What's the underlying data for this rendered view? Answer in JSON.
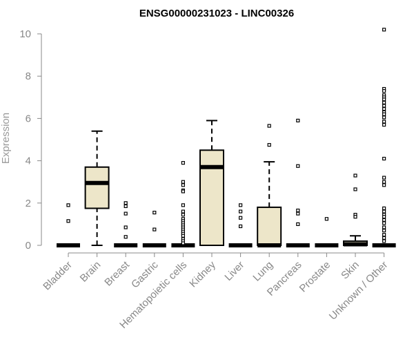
{
  "chart_data": {
    "type": "boxplot",
    "title": "ENSG00000231023 - LINC00326",
    "ylabel": "Expression",
    "xlabel": "",
    "ylim": [
      0,
      10
    ],
    "yticks": [
      0,
      2,
      4,
      6,
      8,
      10
    ],
    "grid": false,
    "legend": "none",
    "box_fill": "#ede6c9",
    "outlier_color": "#000000",
    "axis_color": "#888888",
    "categories": [
      "Bladder",
      "Brain",
      "Breast",
      "Gastric",
      "Hematopoietic cells",
      "Kidney",
      "Liver",
      "Lung",
      "Pancreas",
      "Prostate",
      "Skin",
      "Unknown / Other"
    ],
    "boxes": [
      {
        "category": "Bladder",
        "whisker_low": 0,
        "q1": 0,
        "median": 0,
        "q3": 0,
        "whisker_high": 0,
        "outliers": [
          1.9,
          1.15
        ]
      },
      {
        "category": "Brain",
        "whisker_low": 0,
        "q1": 1.75,
        "median": 2.95,
        "q3": 3.7,
        "whisker_high": 5.4,
        "outliers": []
      },
      {
        "category": "Breast",
        "whisker_low": 0,
        "q1": 0,
        "median": 0,
        "q3": 0,
        "whisker_high": 0,
        "outliers": [
          2.0,
          1.85,
          1.5,
          0.85,
          0.4
        ]
      },
      {
        "category": "Gastric",
        "whisker_low": 0,
        "q1": 0,
        "median": 0,
        "q3": 0,
        "whisker_high": 0,
        "outliers": [
          1.55,
          0.75
        ]
      },
      {
        "category": "Hematopoietic cells",
        "whisker_low": 0,
        "q1": 0,
        "median": 0,
        "q3": 0,
        "whisker_high": 0,
        "outliers": [
          3.9,
          3.0,
          2.85,
          2.6,
          2.55,
          1.9,
          1.6,
          1.45,
          1.25,
          1.15,
          1.05,
          0.95,
          0.85,
          0.75,
          0.65,
          0.55,
          0.45,
          0.3,
          0.2,
          0.1
        ]
      },
      {
        "category": "Kidney",
        "whisker_low": 0,
        "q1": 0,
        "median": 3.7,
        "q3": 4.5,
        "whisker_high": 5.9,
        "outliers": []
      },
      {
        "category": "Liver",
        "whisker_low": 0,
        "q1": 0,
        "median": 0,
        "q3": 0,
        "whisker_high": 0,
        "outliers": [
          1.9,
          1.6,
          1.3,
          0.9
        ]
      },
      {
        "category": "Lung",
        "whisker_low": 0,
        "q1": 0,
        "median": 0,
        "q3": 1.8,
        "whisker_high": 3.95,
        "outliers": [
          5.65,
          4.75
        ]
      },
      {
        "category": "Pancreas",
        "whisker_low": 0,
        "q1": 0,
        "median": 0,
        "q3": 0,
        "whisker_high": 0,
        "outliers": [
          5.9,
          3.75,
          1.65,
          1.5,
          1.0
        ]
      },
      {
        "category": "Prostate",
        "whisker_low": 0,
        "q1": 0,
        "median": 0,
        "q3": 0,
        "whisker_high": 0,
        "outliers": [
          1.25
        ]
      },
      {
        "category": "Skin",
        "whisker_low": 0,
        "q1": 0,
        "median": 0.05,
        "q3": 0.2,
        "whisker_high": 0.45,
        "outliers": [
          3.3,
          2.65,
          1.45,
          1.35
        ]
      },
      {
        "category": "Unknown / Other",
        "whisker_low": 0,
        "q1": 0,
        "median": 0,
        "q3": 0,
        "whisker_high": 0,
        "outliers": [
          10.2,
          7.4,
          7.3,
          7.1,
          7.0,
          6.9,
          6.75,
          6.6,
          6.45,
          6.3,
          6.2,
          6.05,
          5.85,
          5.7,
          4.1,
          3.2,
          3.0,
          2.85,
          1.75,
          1.6,
          1.45,
          1.35,
          1.2,
          1.05,
          0.85,
          0.7,
          0.5,
          0.35,
          0.2
        ]
      }
    ]
  }
}
